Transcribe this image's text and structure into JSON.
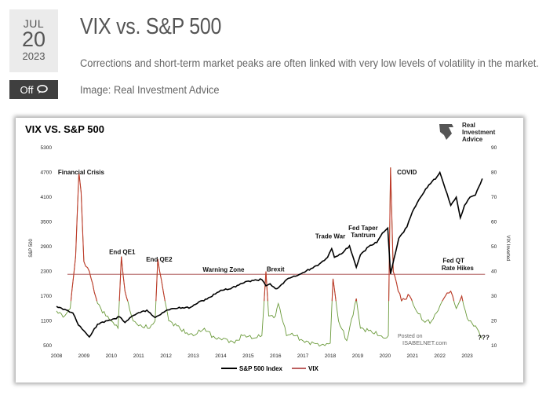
{
  "date": {
    "month": "JUL",
    "day": "20",
    "year": "2023"
  },
  "comments": {
    "label": "Off",
    "icon": "comment-icon"
  },
  "post": {
    "title": "VIX vs. S&P 500",
    "description": "Corrections and short-term market peaks are often linked with very low levels of volatility in the market.",
    "image_credit": "Image: Real Investment Advice"
  },
  "chart_data": {
    "type": "line",
    "title": "VIX VS. S&P 500",
    "brand": [
      "Real",
      "Investment",
      "Advice"
    ],
    "watermark": [
      "Posted on",
      "ISABELNET.com"
    ],
    "xlabel": "",
    "ylabel_left": "S&P 500",
    "ylabel_right": "VIX Inverted",
    "x_ticks": [
      "2008",
      "2009",
      "2010",
      "2011",
      "2012",
      "2013",
      "2014",
      "2015",
      "2016",
      "2017",
      "2018",
      "2019",
      "2020",
      "2021",
      "2022",
      "2023"
    ],
    "left_ticks": [
      500,
      1100,
      1700,
      2300,
      2900,
      3500,
      4100,
      4700,
      5300
    ],
    "right_ticks": [
      10,
      20,
      30,
      40,
      50,
      60,
      70,
      80,
      90
    ],
    "ylim_left": [
      500,
      5300
    ],
    "ylim_right": [
      10,
      90
    ],
    "xlim": [
      2008,
      2023.7
    ],
    "warning_zone_level": 2230,
    "annotations": [
      {
        "text": "Financial Crisis",
        "x": 2008.9,
        "y": 4650
      },
      {
        "text": "End QE1",
        "x": 2010.4,
        "y": 2720
      },
      {
        "text": "End QE2",
        "x": 2011.75,
        "y": 2540
      },
      {
        "text": "Warning Zone",
        "x": 2014.1,
        "y": 2290
      },
      {
        "text": "Brexit",
        "x": 2016.0,
        "y": 2300
      },
      {
        "text": "Trade War",
        "x": 2018.0,
        "y": 3100
      },
      {
        "text": "Fed Taper",
        "x": 2019.2,
        "y": 3300
      },
      {
        "text": "Tantrum",
        "x": 2019.2,
        "y": 3130
      },
      {
        "text": "COVID",
        "x": 2020.8,
        "y": 4650
      },
      {
        "text": "Fed QT",
        "x": 2022.5,
        "y": 2510
      },
      {
        "text": "Rate Hikes",
        "x": 2022.65,
        "y": 2330
      },
      {
        "text": "???",
        "x": 2023.6,
        "y": 640
      }
    ],
    "series": [
      {
        "name": "S&P 500 Index",
        "color": "#000000",
        "x": [
          2008.0,
          2008.3,
          2008.6,
          2008.8,
          2009.0,
          2009.2,
          2009.5,
          2009.8,
          2010.0,
          2010.3,
          2010.5,
          2010.8,
          2011.0,
          2011.3,
          2011.6,
          2011.8,
          2012.0,
          2012.3,
          2012.6,
          2012.9,
          2013.2,
          2013.5,
          2013.8,
          2014.0,
          2014.3,
          2014.6,
          2014.9,
          2015.2,
          2015.5,
          2015.65,
          2015.8,
          2016.0,
          2016.1,
          2016.4,
          2016.6,
          2016.8,
          2017.0,
          2017.3,
          2017.6,
          2017.9,
          2018.05,
          2018.15,
          2018.4,
          2018.7,
          2018.95,
          2019.1,
          2019.4,
          2019.7,
          2019.9,
          2020.1,
          2020.2,
          2020.5,
          2020.8,
          2021.0,
          2021.3,
          2021.6,
          2021.9,
          2022.0,
          2022.2,
          2022.4,
          2022.6,
          2022.75,
          2022.9,
          2023.1,
          2023.3,
          2023.55
        ],
        "values": [
          1450,
          1380,
          1290,
          1000,
          860,
          710,
          1020,
          1100,
          1120,
          1200,
          1060,
          1230,
          1300,
          1360,
          1180,
          1250,
          1350,
          1400,
          1420,
          1430,
          1560,
          1630,
          1750,
          1840,
          1870,
          1960,
          2050,
          2080,
          2100,
          1950,
          2000,
          1880,
          1900,
          2100,
          2160,
          2200,
          2270,
          2370,
          2480,
          2640,
          2850,
          2640,
          2720,
          2920,
          2400,
          2700,
          2900,
          3000,
          3230,
          3350,
          2240,
          3100,
          3380,
          3750,
          4100,
          4400,
          4600,
          4700,
          4300,
          3900,
          4100,
          3600,
          3900,
          4100,
          4150,
          4550
        ]
      },
      {
        "name": "VIX",
        "color": "#a52a2a",
        "x": [
          2008.0,
          2008.3,
          2008.5,
          2008.7,
          2008.82,
          2008.9,
          2009.0,
          2009.2,
          2009.5,
          2009.8,
          2010.0,
          2010.25,
          2010.37,
          2010.5,
          2010.8,
          2011.0,
          2011.4,
          2011.6,
          2011.7,
          2011.9,
          2012.1,
          2012.4,
          2012.7,
          2013.0,
          2013.4,
          2013.8,
          2014.1,
          2014.5,
          2014.8,
          2015.2,
          2015.5,
          2015.65,
          2015.75,
          2016.0,
          2016.1,
          2016.4,
          2016.6,
          2017.0,
          2017.4,
          2017.8,
          2018.0,
          2018.1,
          2018.3,
          2018.6,
          2018.95,
          2019.1,
          2019.4,
          2019.8,
          2020.0,
          2020.12,
          2020.2,
          2020.3,
          2020.6,
          2020.9,
          2021.1,
          2021.4,
          2021.7,
          2022.0,
          2022.2,
          2022.4,
          2022.6,
          2022.8,
          2023.0,
          2023.3,
          2023.55
        ],
        "values": [
          24,
          22,
          25,
          46,
          80,
          72,
          44,
          40,
          27,
          22,
          20,
          17,
          46,
          32,
          20,
          18,
          17,
          20,
          45,
          32,
          20,
          18,
          15,
          14,
          17,
          13,
          13,
          11,
          14,
          13,
          14,
          40,
          22,
          22,
          27,
          14,
          15,
          12,
          11,
          10,
          11,
          37,
          20,
          12,
          29,
          17,
          16,
          14,
          13,
          14,
          82,
          40,
          28,
          30,
          25,
          20,
          20,
          26,
          30,
          32,
          25,
          30,
          21,
          18,
          13
        ]
      }
    ]
  }
}
